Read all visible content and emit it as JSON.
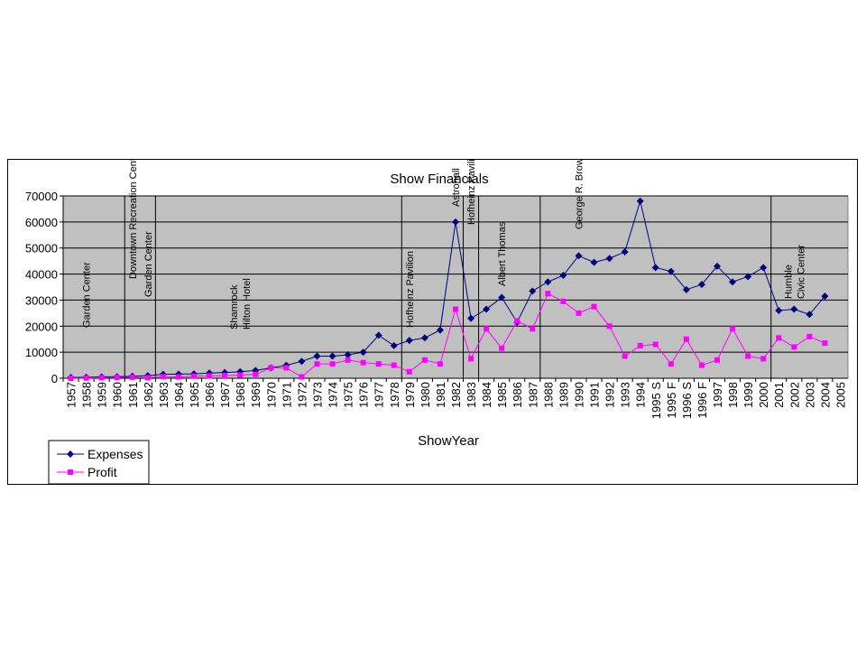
{
  "chart_data": {
    "type": "line",
    "title": "Show Financials",
    "xlabel": "ShowYear",
    "ylabel": "",
    "ylim": [
      0,
      70000
    ],
    "yticks": [
      0,
      10000,
      20000,
      30000,
      40000,
      50000,
      60000,
      70000
    ],
    "grid": true,
    "legend_position": "bottom-left",
    "categories": [
      "1957",
      "1958",
      "1959",
      "1960",
      "1961",
      "1962",
      "1963",
      "1964",
      "1965",
      "1966",
      "1967",
      "1968",
      "1969",
      "1970",
      "1971",
      "1972",
      "1973",
      "1974",
      "1975",
      "1976",
      "1977",
      "1978",
      "1979",
      "1980",
      "1981",
      "1982",
      "1983",
      "1984",
      "1985",
      "1986",
      "1987",
      "1988",
      "1989",
      "1990",
      "1991",
      "1992",
      "1993",
      "1994",
      "1995 S",
      "1995 F",
      "1996 S",
      "1996 F",
      "1997",
      "1998",
      "1999",
      "2000",
      "2001",
      "2002",
      "2003",
      "2004",
      "2005"
    ],
    "series": [
      {
        "name": "Expenses",
        "color": "#000080",
        "marker": "diamond",
        "values": [
          300,
          400,
          500,
          600,
          800,
          1000,
          1500,
          1600,
          1700,
          2000,
          2200,
          2500,
          3000,
          4000,
          5000,
          6500,
          8500,
          8500,
          9000,
          10000,
          16500,
          12500,
          14500,
          15500,
          18500,
          60000,
          23000,
          26500,
          31000,
          21500,
          33500,
          37000,
          39500,
          47000,
          44500,
          46000,
          48500,
          68000,
          42500,
          41000,
          34000,
          36000,
          43000,
          37000,
          39000,
          42500,
          26000,
          26500,
          24500,
          31500,
          null
        ]
      },
      {
        "name": "Profit",
        "color": "#FF00FF",
        "marker": "square",
        "values": [
          0,
          100,
          200,
          300,
          400,
          200,
          600,
          500,
          800,
          900,
          1000,
          1200,
          1500,
          4000,
          4000,
          500,
          5500,
          5500,
          7000,
          6000,
          5500,
          5000,
          2500,
          7000,
          5500,
          26500,
          7500,
          19000,
          11500,
          22000,
          19000,
          32500,
          29500,
          25000,
          27500,
          20000,
          8500,
          12500,
          13000,
          5500,
          15000,
          5000,
          7000,
          19000,
          8500,
          7500,
          15500,
          12000,
          16000,
          13500,
          null
        ]
      }
    ],
    "venue_boundaries_after": [
      "1960",
      "1962",
      "1978",
      "1982",
      "1983",
      "1987",
      "2000"
    ],
    "venue_labels": [
      {
        "lines": [
          "Garden Center"
        ],
        "x_category": "1958"
      },
      {
        "lines": [
          "Downtown Recreation Center"
        ],
        "x_category": "1961"
      },
      {
        "lines": [
          "Garden Center"
        ],
        "x_category": "1962"
      },
      {
        "lines": [
          "Shamrock",
          "Hilton Hotel"
        ],
        "x_category": "1968"
      },
      {
        "lines": [
          "Hofheinz Pavilion"
        ],
        "x_category": "1979"
      },
      {
        "lines": [
          "Astrohall"
        ],
        "x_category": "1982"
      },
      {
        "lines": [
          "Hofheinz Pavilion"
        ],
        "x_category": "1983"
      },
      {
        "lines": [
          "Albert Thomas"
        ],
        "x_category": "1985"
      },
      {
        "lines": [
          "George R. Brown"
        ],
        "x_category": "1990"
      },
      {
        "lines": [
          "Humble",
          "Civic Center"
        ],
        "x_category": "2002"
      }
    ]
  }
}
